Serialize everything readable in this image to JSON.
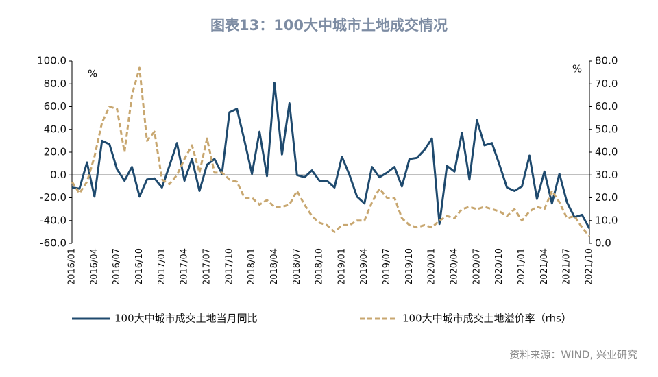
{
  "chart_data": {
    "type": "line",
    "title": "图表13：100大中城市土地成交情况",
    "y_unit": "%",
    "y2_unit": "%",
    "source": "资料来源：WIND, 兴业研究",
    "categories": [
      "2016/01",
      null,
      null,
      "2016/04",
      null,
      null,
      "2016/07",
      null,
      null,
      "2016/10",
      null,
      null,
      "2017/01",
      null,
      null,
      "2017/04",
      null,
      null,
      "2017/07",
      null,
      null,
      "2017/10",
      null,
      null,
      "2018/01",
      null,
      null,
      "2018/04",
      null,
      null,
      "2018/07",
      null,
      null,
      "2018/10",
      null,
      null,
      "2019/01",
      null,
      null,
      "2019/04",
      null,
      null,
      "2019/07",
      null,
      null,
      "2019/10",
      null,
      null,
      "2020/01",
      null,
      null,
      "2020/04",
      null,
      null,
      "2020/07",
      null,
      null,
      "2020/10",
      null,
      null,
      "2021/01",
      null,
      null,
      "2021/04",
      null,
      null,
      "2021/07",
      null,
      null,
      "2021/10"
    ],
    "series": [
      {
        "name": "100大中城市成交土地当月同比",
        "color": "#1f4a6e",
        "values": [
          -11,
          -12,
          11,
          -19,
          30,
          27,
          5,
          -5,
          7,
          -19,
          -4,
          -3,
          -11,
          8,
          28,
          -5,
          14,
          -14,
          9,
          14,
          1,
          55,
          58,
          30,
          1,
          38,
          -1,
          81,
          18,
          63,
          0,
          -2,
          4,
          -5,
          -5,
          -11,
          16,
          0,
          -19,
          -25,
          7,
          -2,
          2,
          7,
          -10,
          14,
          15,
          22,
          32,
          -43,
          8,
          3,
          37,
          -4,
          48,
          26,
          28,
          9,
          -11,
          -14,
          -10,
          17,
          -21,
          3,
          -25,
          1,
          -24,
          -37,
          -35,
          -47
        ]
      },
      {
        "name": "100大中城市成交土地溢价率（rhs）",
        "color": "#c8a770",
        "axis": "y2",
        "dashed": true,
        "values": [
          27,
          22,
          27,
          38,
          53,
          60,
          59,
          40,
          65,
          77,
          45,
          49,
          28,
          26,
          30,
          37,
          43,
          31,
          46,
          31,
          31,
          28,
          27,
          20,
          20,
          17,
          19,
          16,
          16,
          17,
          23,
          17,
          12,
          9,
          8,
          5,
          8,
          8,
          10,
          10,
          18,
          24,
          20,
          20,
          11,
          8,
          7,
          8,
          7,
          10,
          12,
          11,
          15,
          16,
          15,
          16,
          15,
          14,
          12,
          15,
          10,
          14,
          16,
          15,
          23,
          18,
          11,
          12,
          7,
          3
        ]
      }
    ],
    "ylim": [
      -60,
      100
    ],
    "yticks": [
      {
        "value": -60,
        "label": "-60.0"
      },
      {
        "value": -40,
        "label": "-40.0"
      },
      {
        "value": -20,
        "label": "-20.0"
      },
      {
        "value": 0,
        "label": "0.0"
      },
      {
        "value": 20,
        "label": "20.0"
      },
      {
        "value": 40,
        "label": "40.0"
      },
      {
        "value": 60,
        "label": "60.0"
      },
      {
        "value": 80,
        "label": "80.0"
      },
      {
        "value": 100,
        "label": "100.0"
      }
    ],
    "y2lim": [
      0,
      80
    ],
    "y2ticks": [
      {
        "value": 0,
        "label": "0.0"
      },
      {
        "value": 10,
        "label": "10.0"
      },
      {
        "value": 20,
        "label": "20.0"
      },
      {
        "value": 30,
        "label": "30.0"
      },
      {
        "value": 40,
        "label": "40.0"
      },
      {
        "value": 50,
        "label": "50.0"
      },
      {
        "value": 60,
        "label": "60.0"
      },
      {
        "value": 70,
        "label": "70.0"
      },
      {
        "value": 80,
        "label": "80.0"
      }
    ],
    "legend": "bottom",
    "grid": false
  }
}
